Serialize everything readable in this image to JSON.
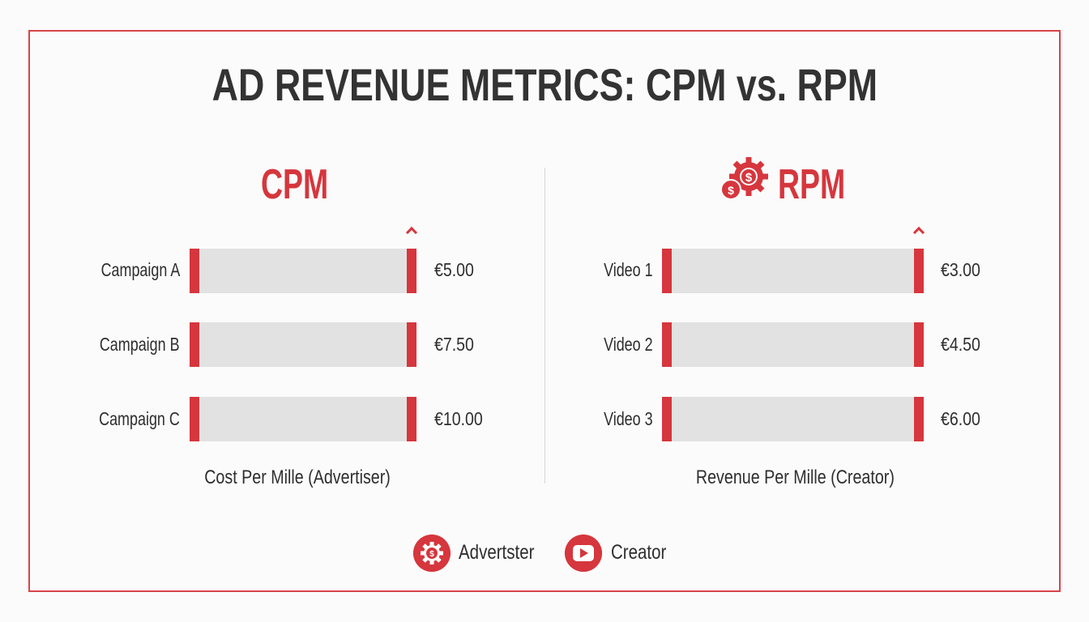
{
  "title": "AD REVENUE METRICS: CPM vs. RPM",
  "colors": {
    "accent": "#d6363d",
    "bar": "#e2e2e2",
    "text": "#2e2e2e"
  },
  "chart_data": [
    {
      "type": "bar",
      "orientation": "horizontal",
      "title": "CPM",
      "xlabel": "Cost Per Mille (Advertiser)",
      "categories": [
        "Campaign A",
        "Campaign B",
        "Campaign C"
      ],
      "values": [
        5.0,
        7.5,
        10.0
      ],
      "data_labels": [
        "€5.00",
        "€7.50",
        "€10.00"
      ]
    },
    {
      "type": "bar",
      "orientation": "horizontal",
      "title": "RPM",
      "title_icon": "gear-dollar-icon",
      "xlabel": "Revenue Per Mille (Creator)",
      "categories": [
        "Video 1",
        "Video 2",
        "Video 3"
      ],
      "values": [
        3.0,
        4.5,
        6.0
      ],
      "data_labels": [
        "€3.00",
        "€4.50",
        "€6.00"
      ]
    }
  ],
  "legend": [
    {
      "label": "Advertster",
      "icon": "gear-dollar-icon"
    },
    {
      "label": "Creator",
      "icon": "play-button-icon"
    }
  ]
}
